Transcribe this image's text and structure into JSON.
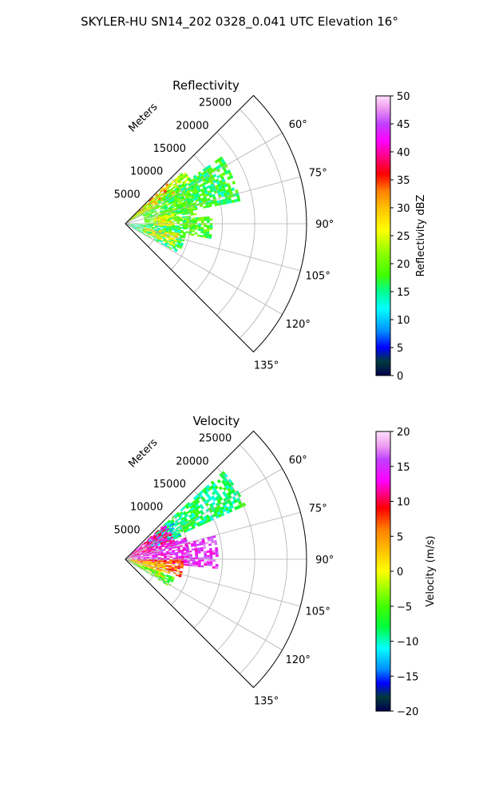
{
  "figure": {
    "suptitle": "SKYLER-HU  SN14_202  0328_0.041 UTC Elevation 16°"
  },
  "chart_data": [
    {
      "type": "heatmap",
      "title": "Reflectivity",
      "radial_axis_label": "Meters",
      "radial_ticks": [
        5000,
        10000,
        15000,
        20000,
        25000
      ],
      "radial_tick_labels": [
        "5000",
        "10000",
        "15000",
        "20000",
        "25000"
      ],
      "rlim": [
        0,
        28000
      ],
      "theta_range_deg": [
        45,
        135
      ],
      "theta_ticks_deg": [
        60,
        75,
        90,
        105,
        120,
        135
      ],
      "theta_tick_labels": [
        "60°",
        "75°",
        "90°",
        "105°",
        "120°",
        "135°"
      ],
      "grid": true,
      "colorbar": {
        "label": "Reflectivity dBZ",
        "range": [
          0,
          50
        ],
        "ticks": [
          0,
          5,
          10,
          15,
          20,
          25,
          30,
          35,
          40,
          45,
          50
        ],
        "tick_labels": [
          "0",
          "5",
          "10",
          "15",
          "20",
          "25",
          "30",
          "35",
          "40",
          "45",
          "50"
        ],
        "colormap_stops": [
          [
            0,
            "#000050"
          ],
          [
            2.5,
            "#003a3a"
          ],
          [
            5,
            "#0000ff"
          ],
          [
            8,
            "#0090ff"
          ],
          [
            12,
            "#00ffff"
          ],
          [
            15,
            "#00ff90"
          ],
          [
            18,
            "#40ff00"
          ],
          [
            22,
            "#90ff00"
          ],
          [
            26,
            "#ffff00"
          ],
          [
            30,
            "#ffc000"
          ],
          [
            33,
            "#ff8000"
          ],
          [
            36,
            "#ff0000"
          ],
          [
            39,
            "#ff0080"
          ],
          [
            42,
            "#ff00ff"
          ],
          [
            45,
            "#c040ff"
          ],
          [
            48,
            "#f0a0f0"
          ],
          [
            50,
            "#ffe0ff"
          ]
        ]
      },
      "echo_regions": [
        {
          "az": [
            46,
            58
          ],
          "r": [
            500,
            9000
          ],
          "value": 32
        },
        {
          "az": [
            48,
            62
          ],
          "r": [
            500,
            12000
          ],
          "value": 22
        },
        {
          "az": [
            55,
            78
          ],
          "r": [
            6000,
            18000
          ],
          "value": 17
        },
        {
          "az": [
            62,
            95
          ],
          "r": [
            3000,
            11000
          ],
          "value": 19
        },
        {
          "az": [
            85,
            100
          ],
          "r": [
            9000,
            13500
          ],
          "value": 18
        },
        {
          "az": [
            92,
            118
          ],
          "r": [
            500,
            9500
          ],
          "value": 16
        },
        {
          "az": [
            100,
            115
          ],
          "r": [
            3000,
            8000
          ],
          "value": 26
        },
        {
          "az": [
            78,
            92
          ],
          "r": [
            4500,
            7500
          ],
          "value": 27
        }
      ]
    },
    {
      "type": "heatmap",
      "title": "Velocity",
      "radial_axis_label": "Meters",
      "radial_ticks": [
        5000,
        10000,
        15000,
        20000,
        25000
      ],
      "radial_tick_labels": [
        "5000",
        "10000",
        "15000",
        "20000",
        "25000"
      ],
      "rlim": [
        0,
        28000
      ],
      "theta_range_deg": [
        45,
        135
      ],
      "theta_ticks_deg": [
        60,
        75,
        90,
        105,
        120,
        135
      ],
      "theta_tick_labels": [
        "60°",
        "75°",
        "90°",
        "105°",
        "120°",
        "135°"
      ],
      "grid": true,
      "colorbar": {
        "label": "Velocity (m/s)",
        "range": [
          -20,
          20
        ],
        "ticks": [
          -20,
          -15,
          -10,
          -5,
          0,
          5,
          10,
          15,
          20
        ],
        "tick_labels": [
          "−20",
          "−15",
          "−10",
          "−5",
          "0",
          "5",
          "10",
          "15",
          "20"
        ],
        "colormap_stops": [
          [
            -20,
            "#000050"
          ],
          [
            -18,
            "#003a3a"
          ],
          [
            -16,
            "#0000ff"
          ],
          [
            -14,
            "#0090ff"
          ],
          [
            -11,
            "#00ffff"
          ],
          [
            -8,
            "#00ff40"
          ],
          [
            -5,
            "#40ff00"
          ],
          [
            -2,
            "#b0ff00"
          ],
          [
            0,
            "#ffff00"
          ],
          [
            3,
            "#ffc000"
          ],
          [
            6,
            "#ff8000"
          ],
          [
            9,
            "#ff0000"
          ],
          [
            11,
            "#ff0080"
          ],
          [
            13,
            "#ff00ff"
          ],
          [
            16,
            "#c040ff"
          ],
          [
            18,
            "#f0a0f0"
          ],
          [
            20,
            "#ffe0ff"
          ]
        ]
      },
      "echo_regions": [
        {
          "az": [
            48,
            65
          ],
          "r": [
            6000,
            20000
          ],
          "value": -8
        },
        {
          "az": [
            50,
            68
          ],
          "r": [
            4000,
            9000
          ],
          "value": -11
        },
        {
          "az": [
            48,
            75
          ],
          "r": [
            500,
            8000
          ],
          "value": 12
        },
        {
          "az": [
            70,
            95
          ],
          "r": [
            1000,
            10000
          ],
          "value": 14
        },
        {
          "az": [
            90,
            108
          ],
          "r": [
            500,
            9000
          ],
          "value": 7
        },
        {
          "az": [
            95,
            115
          ],
          "r": [
            500,
            6000
          ],
          "value": 2
        },
        {
          "az": [
            110,
            122
          ],
          "r": [
            500,
            8000
          ],
          "value": -5
        },
        {
          "az": [
            75,
            95
          ],
          "r": [
            9000,
            14000
          ],
          "value": 15
        }
      ]
    }
  ]
}
